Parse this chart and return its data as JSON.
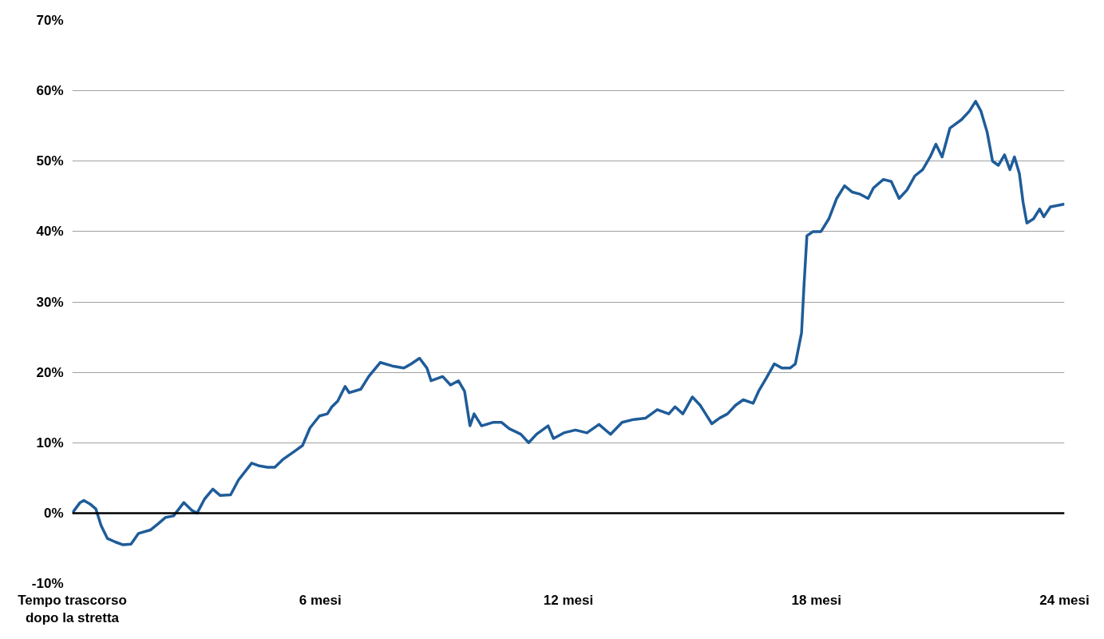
{
  "chart_data": {
    "type": "line",
    "grid": "y",
    "marker": "none",
    "line_style": "solid",
    "xlim": [
      0,
      24
    ],
    "ylim": [
      -10,
      70
    ],
    "xticks": [
      {
        "value": 0,
        "label": "Tempo trascorso\ndopo la stretta"
      },
      {
        "value": 6,
        "label": "6 mesi"
      },
      {
        "value": 12,
        "label": "12 mesi"
      },
      {
        "value": 18,
        "label": "18 mesi"
      },
      {
        "value": 24,
        "label": "24 mesi"
      }
    ],
    "yticks": [
      {
        "value": -10,
        "label": "-10%"
      },
      {
        "value": 0,
        "label": "0%"
      },
      {
        "value": 10,
        "label": "10%"
      },
      {
        "value": 20,
        "label": "20%"
      },
      {
        "value": 30,
        "label": "30%"
      },
      {
        "value": 40,
        "label": "40%"
      },
      {
        "value": 50,
        "label": "50%"
      },
      {
        "value": 60,
        "label": "60%"
      },
      {
        "value": 70,
        "label": "70%"
      }
    ],
    "ref_lines": [
      {
        "axis": "y",
        "value": 0,
        "label": null,
        "color": "#000000"
      }
    ],
    "series": [
      {
        "color": "#1f5c99",
        "x": [
          0,
          0.19,
          0.28,
          0.43,
          0.57,
          0.7,
          0.85,
          1.04,
          1.23,
          1.42,
          1.6,
          1.89,
          2.08,
          2.26,
          2.45,
          2.7,
          2.89,
          3.02,
          3.2,
          3.4,
          3.58,
          3.83,
          4.02,
          4.34,
          4.53,
          4.72,
          4.9,
          5.09,
          5.38,
          5.57,
          5.75,
          5.98,
          6.17,
          6.28,
          6.42,
          6.6,
          6.7,
          6.98,
          7.17,
          7.45,
          7.74,
          8.02,
          8.2,
          8.4,
          8.58,
          8.68,
          8.96,
          9.15,
          9.34,
          9.49,
          9.62,
          9.72,
          9.9,
          10.19,
          10.38,
          10.57,
          10.85,
          11.04,
          11.23,
          11.51,
          11.64,
          11.89,
          12.17,
          12.45,
          12.74,
          13.02,
          13.3,
          13.58,
          13.87,
          14.15,
          14.43,
          14.58,
          14.77,
          15.0,
          15.19,
          15.32,
          15.47,
          15.66,
          15.85,
          16.04,
          16.23,
          16.47,
          16.6,
          16.79,
          16.98,
          17.17,
          17.36,
          17.49,
          17.64,
          17.7,
          17.77,
          17.92,
          18.11,
          18.3,
          18.49,
          18.68,
          18.87,
          19.06,
          19.25,
          19.38,
          19.62,
          19.81,
          20.0,
          20.19,
          20.38,
          20.57,
          20.75,
          20.89,
          21.04,
          21.23,
          21.51,
          21.7,
          21.85,
          21.98,
          22.13,
          22.26,
          22.4,
          22.55,
          22.68,
          22.79,
          22.91,
          23.0,
          23.09,
          23.25,
          23.4,
          23.5,
          23.66,
          24.0
        ],
        "values": [
          0,
          1.5,
          1.8,
          1.3,
          0.6,
          -1.8,
          -3.6,
          -4.1,
          -4.5,
          -4.4,
          -2.9,
          -2.4,
          -1.5,
          -0.6,
          -0.4,
          1.5,
          0.4,
          0,
          2.0,
          3.4,
          2.5,
          2.6,
          4.7,
          7.1,
          6.7,
          6.5,
          6.5,
          7.6,
          8.8,
          9.6,
          12.1,
          13.8,
          14.1,
          15.1,
          15.9,
          18.0,
          17.1,
          17.6,
          19.4,
          21.4,
          20.9,
          20.6,
          21.2,
          22.0,
          20.6,
          18.8,
          19.4,
          18.2,
          18.8,
          17.3,
          12.4,
          14.1,
          12.4,
          12.9,
          12.9,
          12.0,
          11.2,
          10.0,
          11.2,
          12.4,
          10.6,
          11.4,
          11.8,
          11.4,
          12.6,
          11.2,
          12.9,
          13.3,
          13.5,
          14.7,
          14.1,
          15.1,
          14.1,
          16.5,
          15.3,
          14.1,
          12.7,
          13.5,
          14.1,
          15.3,
          16.1,
          15.6,
          17.3,
          19.2,
          21.2,
          20.6,
          20.6,
          21.2,
          25.6,
          32.4,
          39.4,
          40.0,
          40.0,
          41.8,
          44.7,
          46.5,
          45.6,
          45.3,
          44.7,
          46.2,
          47.4,
          47.1,
          44.7,
          45.9,
          47.9,
          48.8,
          50.6,
          52.4,
          50.6,
          54.7,
          55.9,
          57.1,
          58.5,
          57.1,
          54.1,
          50.0,
          49.4,
          50.9,
          48.8,
          50.6,
          48.2,
          44.1,
          41.2,
          41.8,
          43.2,
          42.1,
          43.5,
          43.9
        ]
      }
    ]
  }
}
